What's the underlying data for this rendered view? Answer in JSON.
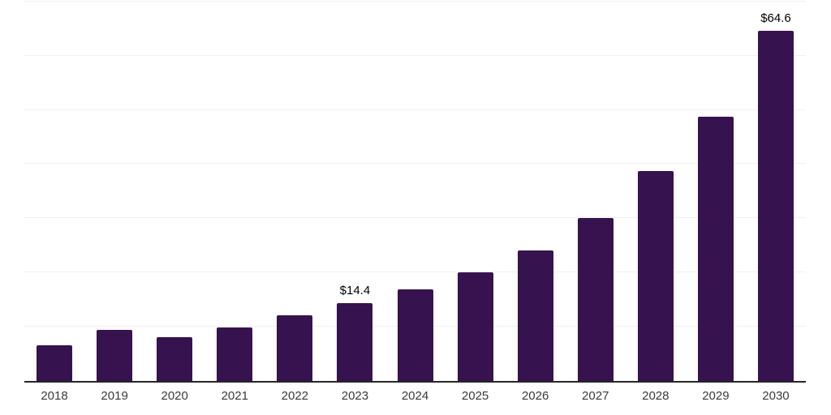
{
  "chart_data": {
    "type": "bar",
    "title": "",
    "xlabel": "",
    "ylabel": "",
    "categories": [
      "2018",
      "2019",
      "2020",
      "2021",
      "2022",
      "2023",
      "2024",
      "2025",
      "2026",
      "2027",
      "2028",
      "2029",
      "2030"
    ],
    "values": [
      6.6,
      9.4,
      8.1,
      9.9,
      12.1,
      14.4,
      16.9,
      20.1,
      24.0,
      30.1,
      38.7,
      48.7,
      64.6
    ],
    "point_labels": [
      "",
      "",
      "",
      "",
      "",
      "$14.4",
      "",
      "",
      "",
      "",
      "",
      "",
      "$64.6"
    ],
    "ylim": [
      0,
      70
    ],
    "gridline_step": 10,
    "grid": true,
    "legend_position": "none",
    "bar_color": "#36124e",
    "axis_color": "#262626",
    "gridline_color": "#f0f0f0",
    "tick_label_color": "#3a3a3a",
    "data_label_color": "#000000"
  }
}
